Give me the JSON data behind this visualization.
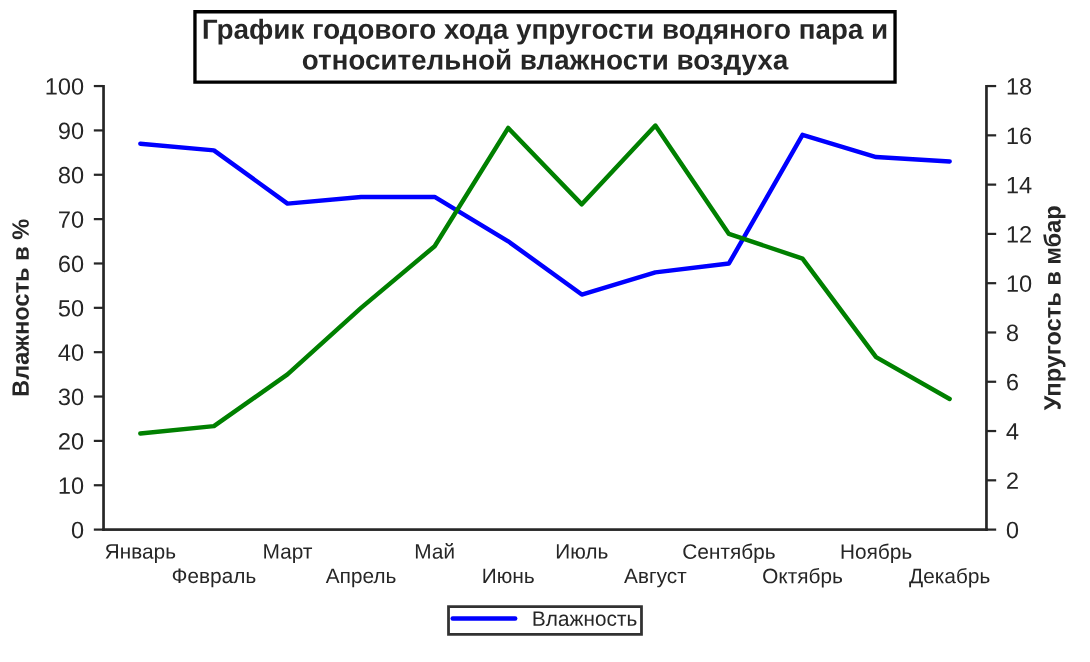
{
  "chart_data": {
    "type": "line",
    "title": "График годового хода упругости водяного пара и\nотносительной влажности воздуха",
    "categories": [
      "Январь",
      "Февраль",
      "Март",
      "Апрель",
      "Май",
      "Июнь",
      "Июль",
      "Август",
      "Сентябрь",
      "Октябрь",
      "Ноябрь",
      "Декабрь"
    ],
    "ylabel": "Влажность в %",
    "y2label": "Упругость в мбар",
    "ylim": [
      0,
      100
    ],
    "yticks": [
      0,
      10,
      20,
      30,
      40,
      50,
      60,
      70,
      80,
      90,
      100
    ],
    "y2lim": [
      0,
      18
    ],
    "y2ticks": [
      0,
      2,
      4,
      6,
      8,
      10,
      12,
      14,
      16,
      18
    ],
    "series": [
      {
        "name": "Влажность",
        "color": "#0000ff",
        "values": [
          87,
          85.5,
          73.5,
          75,
          75,
          65,
          53,
          58,
          60,
          89,
          84,
          83
        ]
      },
      {
        "color": "#008000",
        "axis": "y2",
        "values": [
          3.9,
          4.2,
          6.3,
          9,
          11.5,
          16.3,
          13.2,
          16.4,
          12,
          11,
          7,
          5.3
        ]
      }
    ],
    "grid": false,
    "legend": "bottom",
    "marker": "none",
    "line_style": "solid"
  }
}
